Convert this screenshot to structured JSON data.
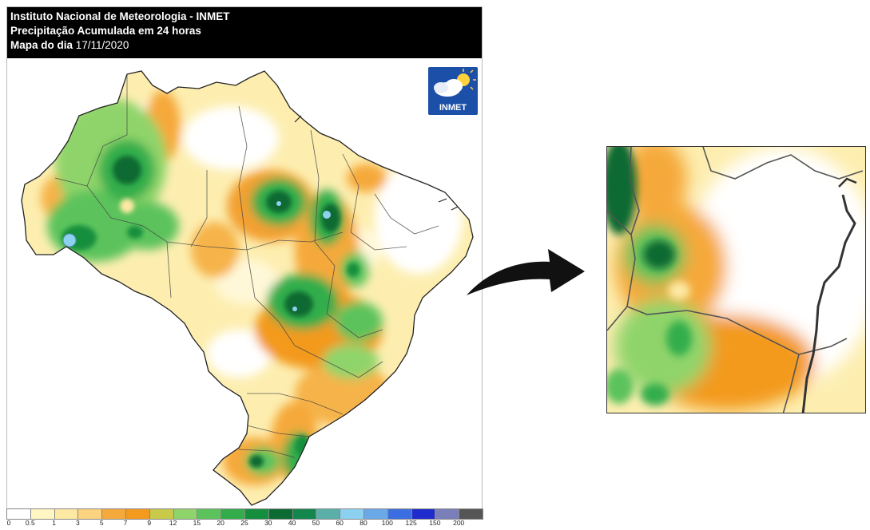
{
  "header": {
    "line1": "Instituto Nacional de Meteorologia - INMET",
    "line2": "Precipitação Acumulada em 24 horas",
    "line3_prefix": "Mapa do dia ",
    "line3_date": "17/11/2020"
  },
  "logo": {
    "text": "INMET",
    "icon": "cloud-sun-icon"
  },
  "legend": {
    "labels": [
      "0",
      "0.5",
      "1",
      "3",
      "5",
      "7",
      "9",
      "12",
      "15",
      "20",
      "25",
      "30",
      "40",
      "50",
      "60",
      "80",
      "100",
      "125",
      "150",
      "200"
    ],
    "colors": [
      "#ffffff",
      "#fff6c4",
      "#fde9a3",
      "#fcd37e",
      "#f6a93b",
      "#f39a1f",
      "#c9c94a",
      "#8fd46b",
      "#5cc35c",
      "#33ad4b",
      "#138f3e",
      "#0b6b32",
      "#12864d",
      "#5ab0a8",
      "#8dd1f1",
      "#6aa8e8",
      "#3b6ee0",
      "#1f2bcc",
      "#7a7fb9",
      "#555555"
    ]
  },
  "arrow_icon": "curved-arrow-icon",
  "colors": {
    "header_bg": "#000000",
    "logo_bg": "#1b4fa8"
  }
}
